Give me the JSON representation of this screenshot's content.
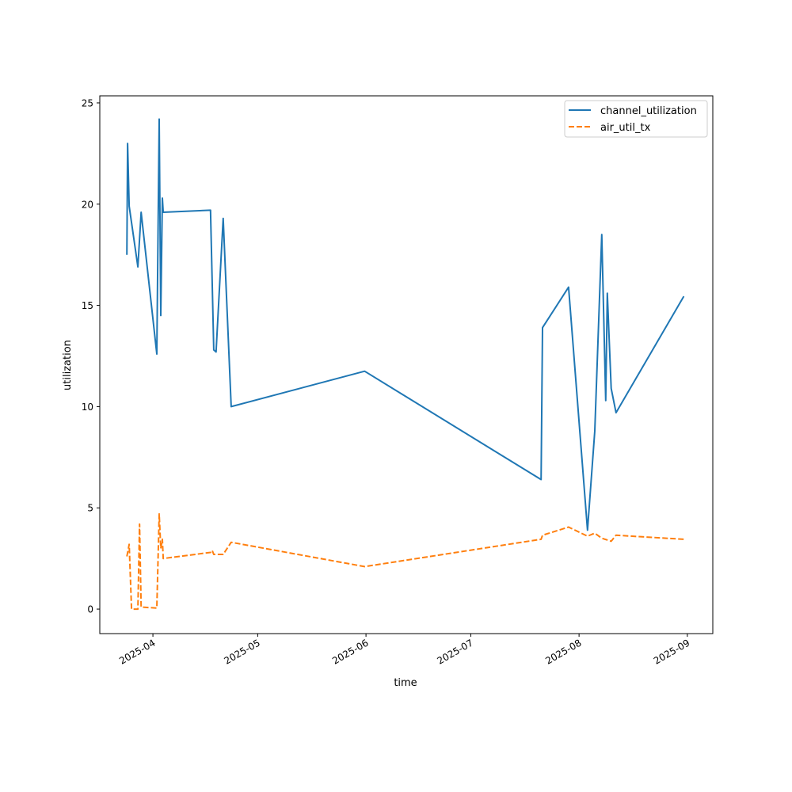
{
  "chart_data": {
    "type": "line",
    "title": "",
    "xlabel": "time",
    "ylabel": "utilization",
    "xlim": [
      "2025-03-16T19:00:00Z",
      "2025-09-08T07:00:00Z"
    ],
    "ylim": [
      -1.21,
      25.35
    ],
    "x_ticks": [
      "2025-04",
      "2025-05",
      "2025-06",
      "2025-07",
      "2025-08",
      "2025-09"
    ],
    "x_tick_dates": [
      "2025-04-01T00:00:00Z",
      "2025-05-01T00:00:00Z",
      "2025-06-01T00:00:00Z",
      "2025-07-01T00:00:00Z",
      "2025-08-01T00:00:00Z",
      "2025-09-01T00:00:00Z"
    ],
    "y_ticks": [
      0,
      5,
      10,
      15,
      20,
      25
    ],
    "grid": false,
    "legend_position": "top-right",
    "series": [
      {
        "name": "channel_utilization",
        "color": "#1f77b4",
        "style": "solid",
        "x": [
          "2025-03-24T13:00:00Z",
          "2025-03-24T18:00:00Z",
          "2025-03-25T05:00:00Z",
          "2025-03-27T17:00:00Z",
          "2025-03-28T15:00:00Z",
          "2025-04-02T03:00:00Z",
          "2025-04-02T19:00:00Z",
          "2025-04-03T06:00:00Z",
          "2025-04-03T17:00:00Z",
          "2025-04-03T23:00:00Z",
          "2025-04-17T12:00:00Z",
          "2025-04-18T10:00:00Z",
          "2025-04-19T02:00:00Z",
          "2025-04-21T03:00:00Z",
          "2025-04-23T10:00:00Z",
          "2025-05-31T15:00:00Z",
          "2025-07-21T03:00:00Z",
          "2025-07-21T13:00:00Z",
          "2025-07-29T00:00:00Z",
          "2025-08-03T10:00:00Z",
          "2025-08-05T12:00:00Z",
          "2025-08-07T12:00:00Z",
          "2025-08-08T15:00:00Z",
          "2025-08-09T02:00:00Z",
          "2025-08-10T05:00:00Z",
          "2025-08-11T14:00:00Z",
          "2025-08-31T00:00:00Z"
        ],
        "y": [
          17.5,
          23.0,
          19.9,
          16.9,
          19.6,
          12.6,
          24.2,
          14.5,
          20.3,
          19.6,
          19.7,
          12.8,
          12.7,
          19.3,
          10.0,
          11.75,
          6.4,
          13.9,
          15.9,
          3.9,
          8.8,
          18.5,
          10.3,
          15.6,
          10.9,
          9.7,
          15.45
        ]
      },
      {
        "name": "air_util_tx",
        "color": "#ff7f0e",
        "style": "dashed",
        "x": [
          "2025-03-24T13:00:00Z",
          "2025-03-25T05:00:00Z",
          "2025-03-25T21:00:00Z",
          "2025-03-27T17:00:00Z",
          "2025-03-28T04:00:00Z",
          "2025-03-28T15:00:00Z",
          "2025-04-02T03:00:00Z",
          "2025-04-02T19:00:00Z",
          "2025-04-03T06:00:00Z",
          "2025-04-03T17:00:00Z",
          "2025-04-03T23:00:00Z",
          "2025-04-17T12:00:00Z",
          "2025-04-17T23:00:00Z",
          "2025-04-18T10:00:00Z",
          "2025-04-21T03:00:00Z",
          "2025-04-23T10:00:00Z",
          "2025-05-31T15:00:00Z",
          "2025-07-21T03:00:00Z",
          "2025-07-21T13:00:00Z",
          "2025-07-29T00:00:00Z",
          "2025-08-03T10:00:00Z",
          "2025-08-05T12:00:00Z",
          "2025-08-07T12:00:00Z",
          "2025-08-10T05:00:00Z",
          "2025-08-11T14:00:00Z",
          "2025-08-31T00:00:00Z"
        ],
        "y": [
          2.6,
          3.2,
          0.0,
          0.0,
          4.2,
          0.1,
          0.05,
          4.7,
          3.0,
          3.45,
          2.5,
          2.8,
          2.9,
          2.7,
          2.7,
          3.3,
          2.1,
          3.45,
          3.65,
          4.05,
          3.6,
          3.75,
          3.5,
          3.35,
          3.65,
          3.45
        ]
      }
    ]
  }
}
